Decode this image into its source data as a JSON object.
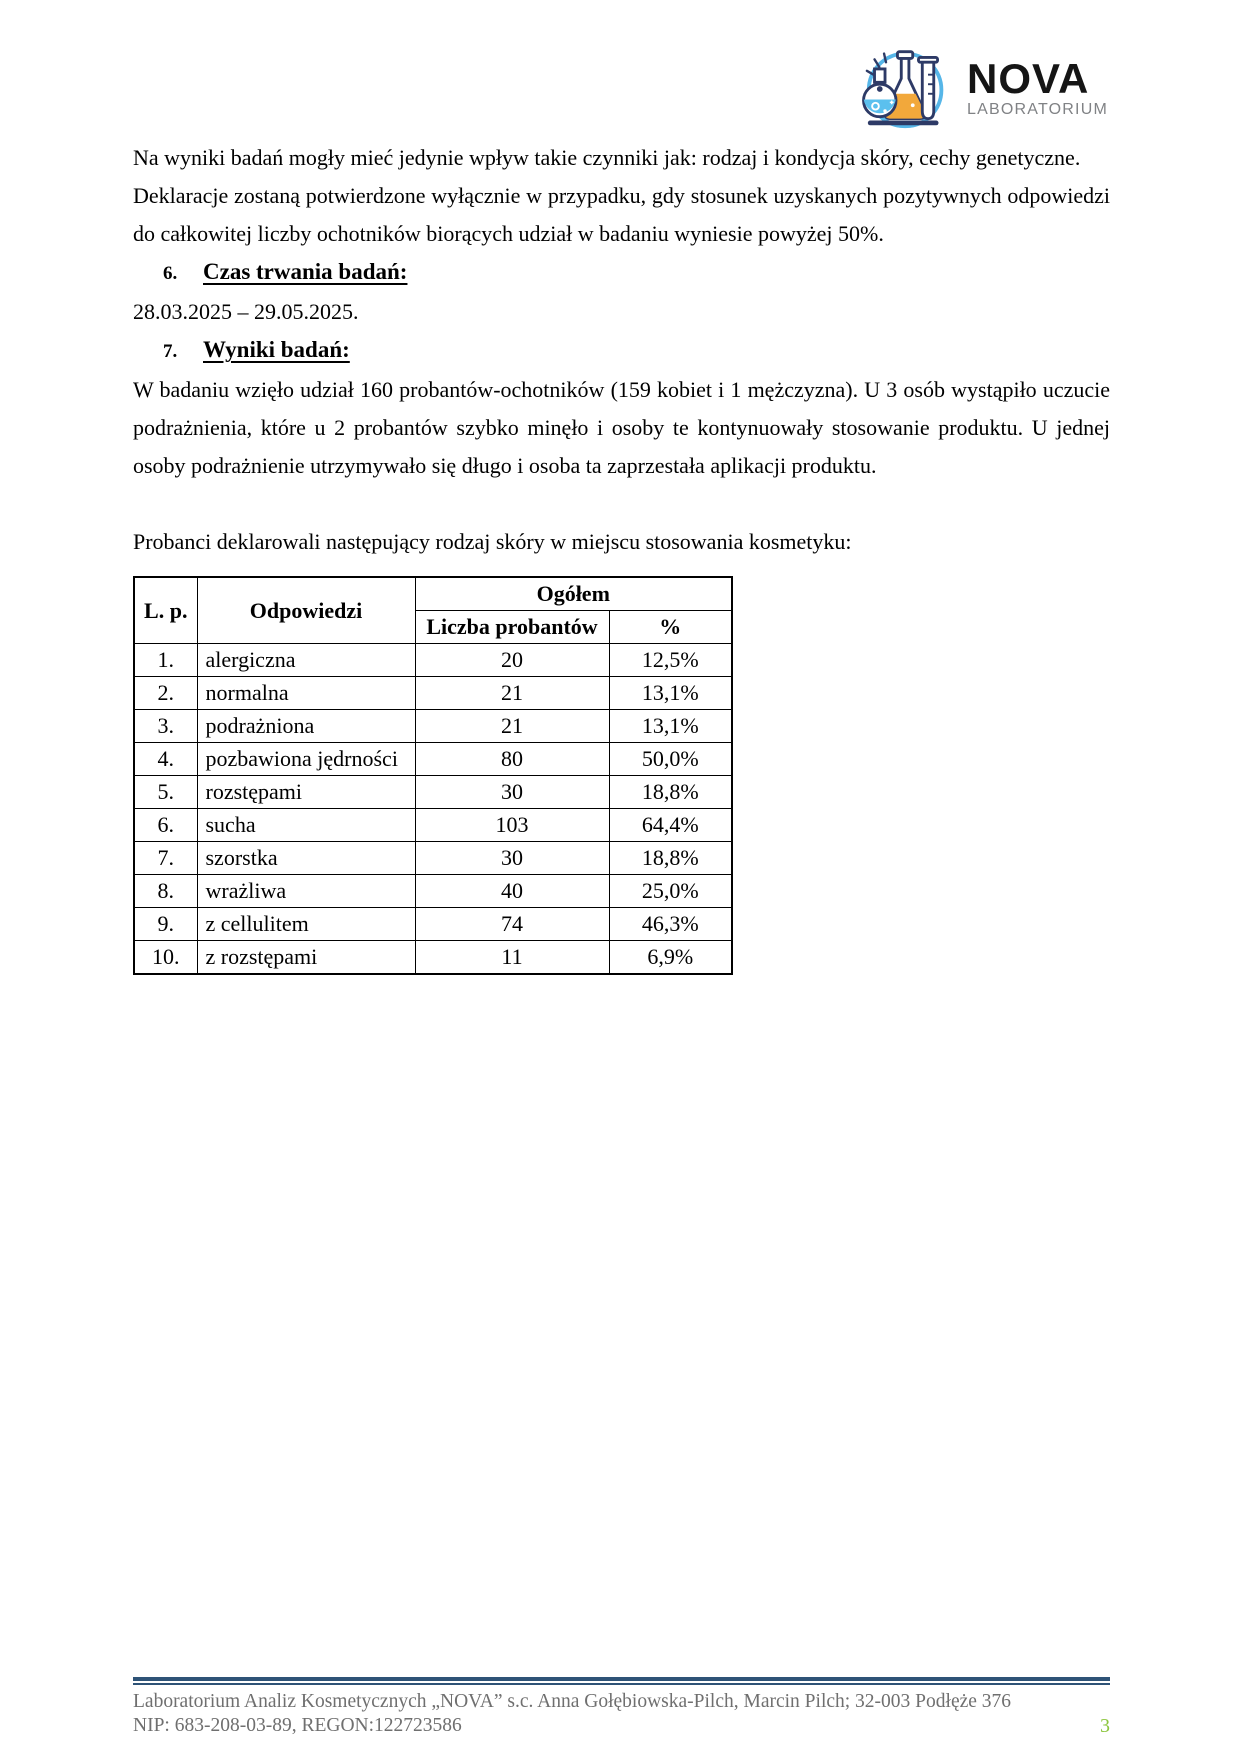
{
  "logo": {
    "name": "NOVA",
    "subtitle": "LABORATORIUM",
    "icon": "lab-flasks-icon",
    "colors": {
      "blue": "#56b6e8",
      "liquid_blue": "#5bc0ee",
      "yellow": "#f2a83b",
      "navy": "#2d3a66",
      "gray": "#808285"
    }
  },
  "paragraphs": {
    "p1": "Na wyniki badań mogły mieć jedynie wpływ takie czynniki jak: rodzaj i kondycja skóry, cechy genetyczne.",
    "p2": "Deklaracje zostaną potwierdzone wyłącznie w przypadku, gdy stosunek uzyskanych pozytywnych odpowiedzi do całkowitej liczby ochotników biorących udział w badaniu wyniesie powyżej 50%.",
    "date_range": "28.03.2025 – 29.05.2025.",
    "p3": "W badaniu wzięło udział 160 probantów-ochotników (159 kobiet i 1 mężczyzna). U 3 osób wystąpiło uczucie podrażnienia, które u 2 probantów szybko minęło i osoby te kontynuowały stosowanie produktu. U jednej osoby podrażnienie utrzymywało się długo i osoba ta zaprzestała aplikacji produktu.",
    "p4": "Probanci deklarowali następujący rodzaj skóry w miejscu stosowania kosmetyku:"
  },
  "sections": {
    "s6": {
      "number": "6.",
      "title": "Czas trwania badań:"
    },
    "s7": {
      "number": "7.",
      "title": "Wyniki badań:"
    }
  },
  "table": {
    "headers": {
      "lp": "L. p.",
      "odpowiedzi": "Odpowiedzi",
      "ogolem": "Ogółem",
      "liczba": "Liczba probantów",
      "percent": "%"
    },
    "rows": [
      [
        "1.",
        "alergiczna",
        "20",
        "12,5%"
      ],
      [
        "2.",
        "normalna",
        "21",
        "13,1%"
      ],
      [
        "3.",
        "podrażniona",
        "21",
        "13,1%"
      ],
      [
        "4.",
        "pozbawiona jędrności",
        "80",
        "50,0%"
      ],
      [
        "5.",
        "rozstępami",
        "30",
        "18,8%"
      ],
      [
        "6.",
        "sucha",
        "103",
        "64,4%"
      ],
      [
        "7.",
        "szorstka",
        "30",
        "18,8%"
      ],
      [
        "8.",
        "wrażliwa",
        "40",
        "25,0%"
      ],
      [
        "9.",
        "z cellulitem",
        "74",
        "46,3%"
      ],
      [
        "10.",
        "z rozstępami",
        "11",
        "6,9%"
      ]
    ]
  },
  "footer": {
    "line1": "Laboratorium Analiz Kosmetycznych „NOVA” s.c. Anna Gołębiowska-Pilch, Marcin Pilch; 32-003 Podłęże 376",
    "line2": "NIP: 683-208-03-89, REGON:122723586",
    "page_number": "3",
    "rule_color": "#2e5377",
    "page_number_color": "#8dc63f"
  }
}
